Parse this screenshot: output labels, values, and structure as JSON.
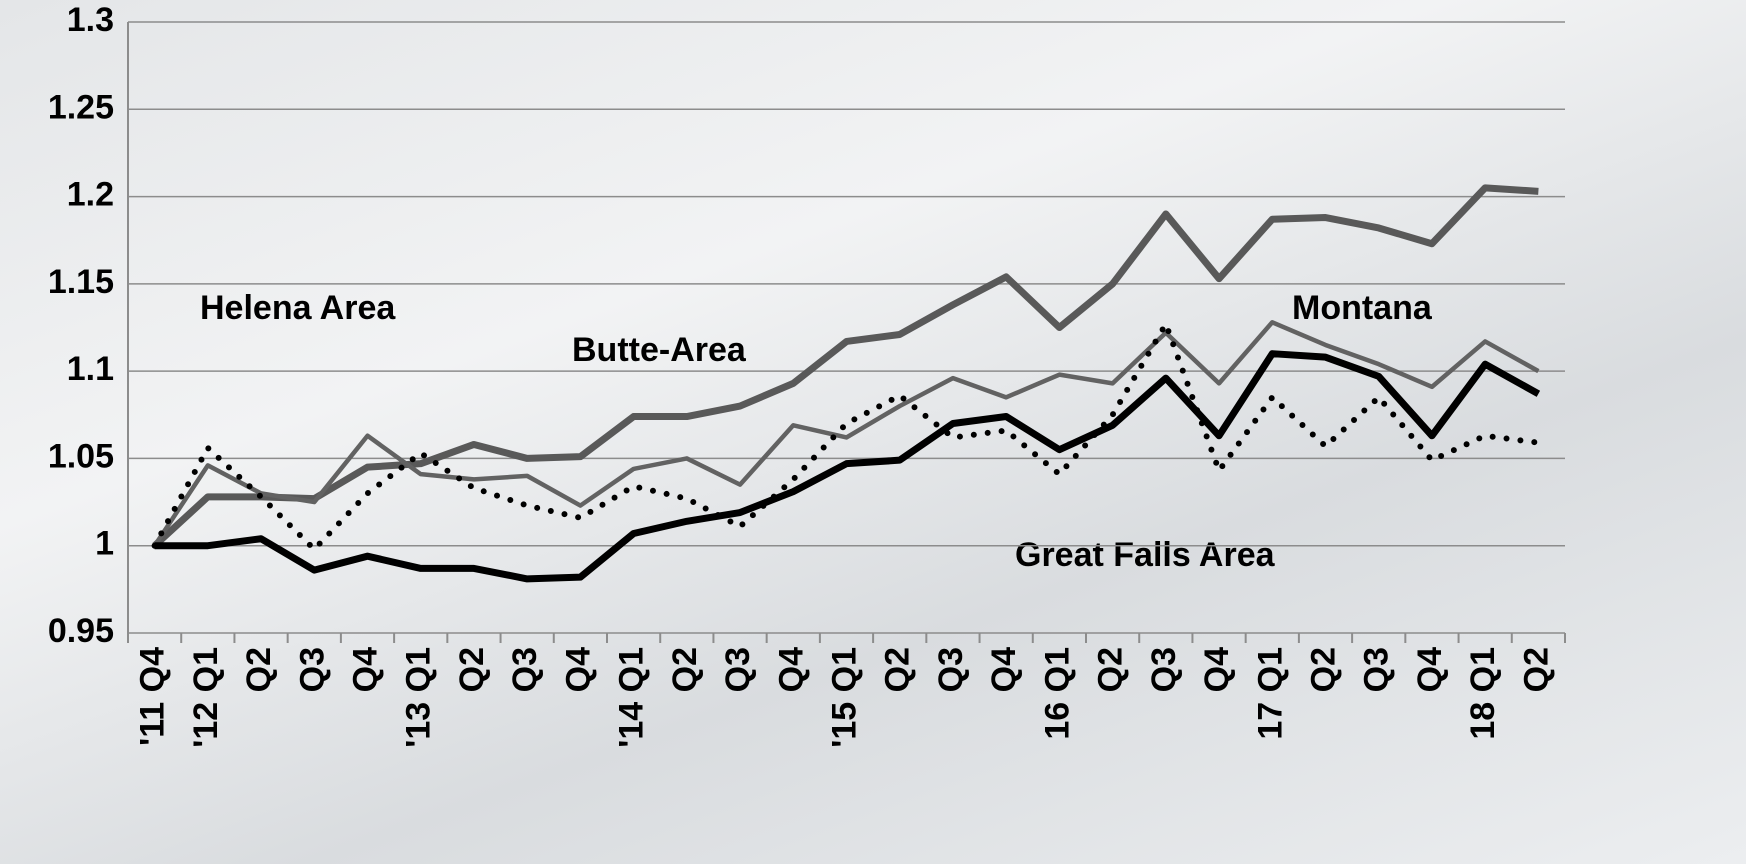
{
  "chart_data": {
    "type": "line",
    "categories": [
      "'11 Q4",
      "'12 Q1",
      "Q2",
      "Q3",
      "Q4",
      "'13 Q1",
      "Q2",
      "Q3",
      "Q4",
      "'14 Q1",
      "Q2",
      "Q3",
      "Q4",
      "'15 Q1",
      "Q2",
      "Q3",
      "Q4",
      "16 Q1",
      "Q2",
      "Q3",
      "Q4",
      "17 Q1",
      "Q2",
      "Q3",
      "Q4",
      "18 Q1",
      "Q2"
    ],
    "series": [
      {
        "name": "Helena Area",
        "color": "#595959",
        "line_style": "solid",
        "values": [
          1.0,
          1.028,
          1.028,
          1.027,
          1.045,
          1.047,
          1.058,
          1.05,
          1.051,
          1.074,
          1.074,
          1.08,
          1.093,
          1.117,
          1.121,
          1.138,
          1.154,
          1.125,
          1.15,
          1.19,
          1.153,
          1.187,
          1.188,
          1.182,
          1.173,
          1.205,
          1.203
        ]
      },
      {
        "name": "Butte-Area",
        "color": "#626262",
        "line_style": "solid",
        "values": [
          1.0,
          1.046,
          1.03,
          1.025,
          1.063,
          1.041,
          1.038,
          1.04,
          1.023,
          1.044,
          1.05,
          1.035,
          1.069,
          1.062,
          1.08,
          1.096,
          1.085,
          1.098,
          1.093,
          1.122,
          1.093,
          1.128,
          1.115,
          1.104,
          1.091,
          1.117,
          1.1
        ]
      },
      {
        "name": "Montana",
        "color": "#000000",
        "line_style": "solid",
        "values": [
          1.0,
          1.0,
          1.004,
          0.986,
          0.994,
          0.987,
          0.987,
          0.981,
          0.982,
          1.007,
          1.014,
          1.019,
          1.031,
          1.047,
          1.049,
          1.07,
          1.074,
          1.055,
          1.069,
          1.096,
          1.063,
          1.11,
          1.108,
          1.097,
          1.063,
          1.104,
          1.087
        ]
      },
      {
        "name": "Great Falls Area",
        "color": "#000000",
        "line_style": "dotted",
        "values": [
          1.0,
          1.056,
          1.028,
          0.998,
          1.03,
          1.053,
          1.033,
          1.023,
          1.016,
          1.034,
          1.027,
          1.011,
          1.038,
          1.07,
          1.086,
          1.062,
          1.066,
          1.041,
          1.075,
          1.127,
          1.043,
          1.085,
          1.057,
          1.085,
          1.049,
          1.063,
          1.059
        ]
      }
    ],
    "ylim": [
      0.95,
      1.3
    ],
    "yticks": [
      0.95,
      1,
      1.05,
      1.1,
      1.15,
      1.2,
      1.25,
      1.3
    ],
    "grid": true
  }
}
